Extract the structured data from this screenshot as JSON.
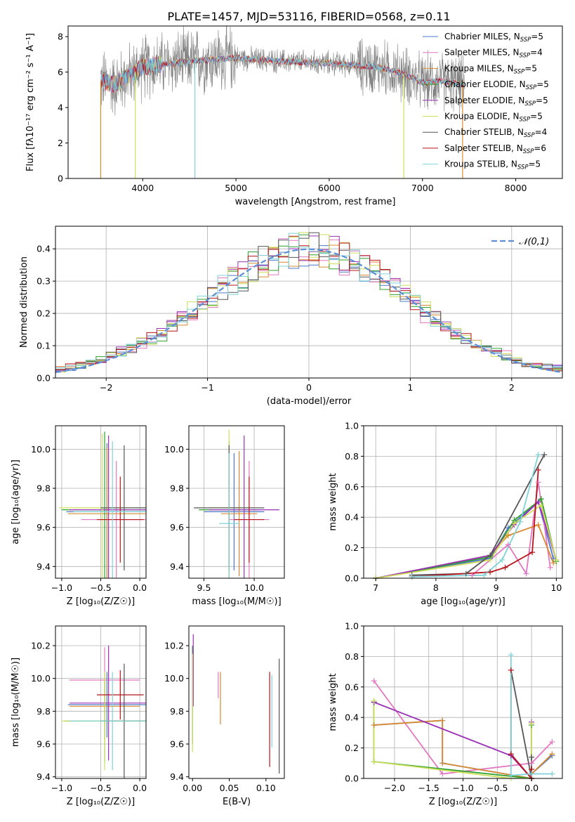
{
  "title": "PLATE=1457, MJD=53116, FIBERID=0568, z=0.11",
  "colors": {
    "Chabrier MILES": "#4e79c8",
    "Salpeter MILES": "#e377c2",
    "Kroupa MILES": "#d98a2f",
    "Chabrier ELODIE": "#2ca02c",
    "Salpeter ELODIE": "#9b30b8",
    "Kroupa ELODIE": "#cddf5a",
    "Chabrier STELIB": "#555555",
    "Salpeter STELIB": "#b8131a",
    "Kroupa STELIB": "#7fd3d8",
    "normal": "#5b8fd6"
  },
  "legend": [
    {
      "text": "Chabrier MILES, N",
      "sub": "SSP",
      "tail": "=5",
      "model": "Chabrier MILES"
    },
    {
      "text": "Salpeter MILES, N",
      "sub": "SSP",
      "tail": "=4",
      "model": "Salpeter MILES"
    },
    {
      "text": "Kroupa MILES, N",
      "sub": "SSP",
      "tail": "=5",
      "model": "Kroupa MILES"
    },
    {
      "text": "Chabrier ELODIE, N",
      "sub": "SSP",
      "tail": "=5",
      "model": "Chabrier ELODIE"
    },
    {
      "text": "Salpeter ELODIE, N",
      "sub": "SSP",
      "tail": "=5",
      "model": "Salpeter ELODIE"
    },
    {
      "text": "Kroupa ELODIE, N",
      "sub": "SSP",
      "tail": "=5",
      "model": "Kroupa ELODIE"
    },
    {
      "text": "Chabrier STELIB, N",
      "sub": "SSP",
      "tail": "=4",
      "model": "Chabrier STELIB"
    },
    {
      "text": "Salpeter STELIB, N",
      "sub": "SSP",
      "tail": "=6",
      "model": "Salpeter STELIB"
    },
    {
      "text": "Kroupa STELIB, N",
      "sub": "SSP",
      "tail": "=5",
      "model": "Kroupa STELIB"
    }
  ],
  "chart_data": [
    {
      "id": "spectrum",
      "type": "line",
      "xlabel": "wavelength [Angstrom, rest frame]",
      "ylabel": "Flux [fλ10⁻¹⁷ erg cm⁻² s⁻¹ A⁻¹]",
      "xlim": [
        3200,
        8500
      ],
      "ylim": [
        0,
        8.6
      ],
      "xticks": [
        4000,
        5000,
        6000,
        7000,
        8000
      ],
      "yticks": [
        0,
        2,
        4,
        6,
        8
      ],
      "grid": false,
      "series_profile": {
        "x": [
          3550,
          3700,
          4000,
          4500,
          5000,
          5500,
          6000,
          6500,
          6800,
          7000,
          7200,
          7400
        ],
        "y": [
          5.5,
          5.3,
          6.3,
          6.6,
          6.8,
          6.6,
          6.5,
          6.3,
          5.9,
          5.4,
          5.5,
          5.3
        ]
      },
      "data_range_x": [
        3550,
        7450
      ],
      "model_range_x": [
        3550,
        7450
      ],
      "dips": [
        {
          "x": 4560,
          "y": 0
        },
        {
          "x": 6800,
          "y": 0
        },
        {
          "x": 3920,
          "y": 0
        },
        {
          "x": 3550,
          "y": 0
        },
        {
          "x": 7430,
          "y": 0
        }
      ]
    },
    {
      "id": "residuals",
      "type": "step",
      "xlabel": "(data-model)/error",
      "ylabel": "Normed distribution",
      "xlim": [
        -2.5,
        2.5
      ],
      "ylim": [
        0,
        0.47
      ],
      "xticks": [
        -2,
        -1,
        0,
        1,
        2
      ],
      "yticks": [
        0.0,
        0.1,
        0.2,
        0.3,
        0.4
      ],
      "grid": true,
      "legend": {
        "label": "𝒩(0,1)",
        "placement": "top-right"
      },
      "bin_width": 0.1,
      "bins_from": -2.5
    },
    {
      "id": "age_Z",
      "type": "errorbar",
      "xlabel": "Z [log₁₀(Z/Z☉)]",
      "ylabel": "age  [log₁₀(age/yr)]",
      "xlim": [
        -1.08,
        0.08
      ],
      "ylim": [
        9.34,
        10.12
      ],
      "xticks": [
        -1.0,
        -0.5,
        0.0
      ],
      "yticks": [
        9.4,
        9.6,
        9.8,
        10.0
      ],
      "grid": true,
      "points": [
        {
          "model": "Chabrier MILES",
          "x": -0.42,
          "y": 9.68,
          "xerr": 0.52,
          "yerr": 0.35
        },
        {
          "model": "Salpeter MILES",
          "x": -0.3,
          "y": 9.64,
          "xerr": 0.45,
          "yerr": 0.3
        },
        {
          "model": "Kroupa MILES",
          "x": -0.42,
          "y": 9.67,
          "xerr": 0.5,
          "yerr": 0.34
        },
        {
          "model": "Chabrier ELODIE",
          "x": -0.45,
          "y": 9.69,
          "xerr": 0.55,
          "yerr": 0.4
        },
        {
          "model": "Salpeter ELODIE",
          "x": -0.4,
          "y": 9.69,
          "xerr": 0.5,
          "yerr": 0.38
        },
        {
          "model": "Kroupa ELODIE",
          "x": -0.48,
          "y": 9.7,
          "xerr": 0.55,
          "yerr": 0.38
        },
        {
          "model": "Chabrier STELIB",
          "x": -0.2,
          "y": 9.7,
          "xerr": 0.3,
          "yerr": 0.32
        },
        {
          "model": "Salpeter STELIB",
          "x": -0.25,
          "y": 9.64,
          "xerr": 0.3,
          "yerr": 0.22
        },
        {
          "model": "Kroupa STELIB",
          "x": -0.35,
          "y": 9.68,
          "xerr": 0.5,
          "yerr": 0.36
        }
      ]
    },
    {
      "id": "age_mass",
      "type": "errorbar",
      "xlabel": "mass [log₁₀(M/M☉)]",
      "ylabel": "",
      "xlim": [
        9.35,
        10.3
      ],
      "ylim": [
        9.34,
        10.12
      ],
      "xticks": [
        9.5,
        10.0
      ],
      "yticks": [
        9.4,
        9.6,
        9.8,
        10.0
      ],
      "grid": true,
      "points": [
        {
          "model": "Chabrier MILES",
          "x": 9.8,
          "y": 9.68,
          "xerr": 0.3,
          "yerr": 0.3
        },
        {
          "model": "Salpeter MILES",
          "x": 9.95,
          "y": 9.64,
          "xerr": 0.2,
          "yerr": 0.3
        },
        {
          "model": "Kroupa MILES",
          "x": 9.85,
          "y": 9.67,
          "xerr": 0.18,
          "yerr": 0.32
        },
        {
          "model": "Chabrier ELODIE",
          "x": 9.75,
          "y": 9.69,
          "xerr": 0.3,
          "yerr": 0.35
        },
        {
          "model": "Salpeter ELODIE",
          "x": 9.9,
          "y": 9.69,
          "xerr": 0.35,
          "yerr": 0.38
        },
        {
          "model": "Kroupa ELODIE",
          "x": 9.75,
          "y": 9.7,
          "xerr": 0.2,
          "yerr": 0.4
        },
        {
          "model": "Chabrier STELIB",
          "x": 9.75,
          "y": 9.7,
          "xerr": 0.35,
          "yerr": 0.32
        },
        {
          "model": "Salpeter STELIB",
          "x": 9.95,
          "y": 9.64,
          "xerr": 0.15,
          "yerr": 0.22
        },
        {
          "model": "Kroupa STELIB",
          "x": 9.75,
          "y": 9.62,
          "xerr": 0.1,
          "yerr": 0.36
        }
      ]
    },
    {
      "id": "weight_age",
      "type": "line",
      "xlabel": "age  [log₁₀(age/yr)]",
      "ylabel": "mass weight",
      "xlim": [
        6.8,
        10.1
      ],
      "ylim": [
        0,
        1.0
      ],
      "xticks": [
        7,
        8,
        9,
        10
      ],
      "yticks": [
        0.0,
        0.2,
        0.4,
        0.6,
        0.8,
        1.0
      ],
      "grid": true,
      "series": [
        {
          "model": "Chabrier MILES",
          "x": [
            7.0,
            8.9,
            9.2,
            9.7,
            9.95
          ],
          "y": [
            0.0,
            0.13,
            0.33,
            0.5,
            0.13
          ]
        },
        {
          "model": "Salpeter MILES",
          "x": [
            8.6,
            9.2,
            9.5,
            9.7,
            9.9
          ],
          "y": [
            0.02,
            0.22,
            0.03,
            0.63,
            0.07
          ]
        },
        {
          "model": "Kroupa MILES",
          "x": [
            7.0,
            8.9,
            9.2,
            9.7,
            9.95
          ],
          "y": [
            0.0,
            0.15,
            0.28,
            0.35,
            0.1
          ]
        },
        {
          "model": "Chabrier ELODIE",
          "x": [
            7.0,
            8.9,
            9.3,
            9.75,
            10.0
          ],
          "y": [
            0.0,
            0.14,
            0.38,
            0.52,
            0.11
          ]
        },
        {
          "model": "Salpeter ELODIE",
          "x": [
            7.0,
            8.9,
            9.3,
            9.7,
            10.0
          ],
          "y": [
            0.0,
            0.15,
            0.35,
            0.5,
            0.12
          ]
        },
        {
          "model": "Kroupa ELODIE",
          "x": [
            7.0,
            8.9,
            9.3,
            9.75,
            10.0
          ],
          "y": [
            0.0,
            0.12,
            0.36,
            0.48,
            0.12
          ]
        },
        {
          "model": "Chabrier STELIB",
          "x": [
            7.6,
            8.5,
            8.9,
            9.8
          ],
          "y": [
            0.02,
            0.03,
            0.15,
            0.81
          ]
        },
        {
          "model": "Salpeter STELIB",
          "x": [
            7.6,
            8.9,
            9.15,
            9.6,
            9.7
          ],
          "y": [
            0.01,
            0.04,
            0.07,
            0.17,
            0.71
          ]
        },
        {
          "model": "Kroupa STELIB",
          "x": [
            7.6,
            8.8,
            9.1,
            9.4,
            9.7
          ],
          "y": [
            0.01,
            0.02,
            0.12,
            0.37,
            0.81
          ]
        }
      ]
    },
    {
      "id": "mass_Z",
      "type": "errorbar",
      "xlabel": "Z [log₁₀(Z/Z☉)]",
      "ylabel": "mass [log₁₀(M/M☉)]",
      "xlim": [
        -1.08,
        0.08
      ],
      "ylim": [
        9.39,
        10.32
      ],
      "xticks": [
        -1.0,
        -0.5,
        0.0
      ],
      "yticks": [
        9.4,
        9.6,
        9.8,
        10.0,
        10.2
      ],
      "grid": true,
      "points": [
        {
          "model": "Chabrier MILES",
          "x": -0.42,
          "y": 9.84,
          "xerr": 0.5,
          "yerr": 0.2
        },
        {
          "model": "Salpeter MILES",
          "x": -0.45,
          "y": 9.99,
          "xerr": 0.45,
          "yerr": 0.2
        },
        {
          "model": "Kroupa MILES",
          "x": -0.45,
          "y": 9.83,
          "xerr": 0.45,
          "yerr": 0.2
        },
        {
          "model": "Chabrier ELODIE",
          "x": -0.45,
          "y": 9.74,
          "xerr": 0.52,
          "yerr": 0.25
        },
        {
          "model": "Salpeter ELODIE",
          "x": -0.4,
          "y": 9.85,
          "xerr": 0.5,
          "yerr": 0.35
        },
        {
          "model": "Kroupa ELODIE",
          "x": -0.45,
          "y": 9.74,
          "xerr": 0.55,
          "yerr": 0.3
        },
        {
          "model": "Chabrier STELIB",
          "x": -0.2,
          "y": 9.74,
          "xerr": 0.3,
          "yerr": 0.35
        },
        {
          "model": "Salpeter STELIB",
          "x": -0.25,
          "y": 9.9,
          "xerr": 0.3,
          "yerr": 0.15
        },
        {
          "model": "Kroupa STELIB",
          "x": -0.35,
          "y": 9.74,
          "xerr": 0.55,
          "yerr": 0.3
        }
      ]
    },
    {
      "id": "mass_ebv",
      "type": "errorbar",
      "xlabel": "E(B-V)",
      "ylabel": "",
      "xlim": [
        -0.005,
        0.125
      ],
      "ylim": [
        9.39,
        10.32
      ],
      "xticks": [
        0.0,
        0.05,
        0.1
      ],
      "yticks": [
        9.4,
        9.6,
        9.8,
        10.0,
        10.2
      ],
      "grid": false,
      "points": [
        {
          "model": "Chabrier MILES",
          "x": 0.0,
          "y": 10.0,
          "xerr": 0,
          "yerr": 0.2
        },
        {
          "model": "Salpeter MILES",
          "x": 0.035,
          "y": 9.96,
          "xerr": 0,
          "yerr": 0.08
        },
        {
          "model": "Kroupa MILES",
          "x": 0.038,
          "y": 9.88,
          "xerr": 0,
          "yerr": 0.16
        },
        {
          "model": "Chabrier ELODIE",
          "x": 0.0,
          "y": 9.9,
          "xerr": 0,
          "yerr": 0.3
        },
        {
          "model": "Salpeter ELODIE",
          "x": 0.001,
          "y": 10.05,
          "xerr": 0,
          "yerr": 0.22
        },
        {
          "model": "Kroupa ELODIE",
          "x": 0.0,
          "y": 9.85,
          "xerr": 0,
          "yerr": 0.3
        },
        {
          "model": "Chabrier STELIB",
          "x": 0.118,
          "y": 9.77,
          "xerr": 0,
          "yerr": 0.35
        },
        {
          "model": "Salpeter STELIB",
          "x": 0.105,
          "y": 9.75,
          "xerr": 0,
          "yerr": 0.29
        },
        {
          "model": "Kroupa STELIB",
          "x": 0.108,
          "y": 9.8,
          "xerr": 0,
          "yerr": 0.22
        }
      ]
    },
    {
      "id": "weight_Z",
      "type": "line",
      "xlabel": "Z [log₁₀(Z/Z☉)]",
      "ylabel": "mass weight",
      "xlim": [
        -2.45,
        0.45
      ],
      "ylim": [
        0,
        1.0
      ],
      "xticks": [
        -2.0,
        -1.5,
        -1.0,
        -0.5,
        0.0
      ],
      "yticks": [
        0.0,
        0.2,
        0.4,
        0.6,
        0.8,
        1.0
      ],
      "grid": true,
      "series": [
        {
          "model": "Chabrier MILES",
          "x": [
            -2.3,
            -2.3,
            -1.3,
            -1.3,
            0.0,
            0.0,
            0.3
          ],
          "y": [
            0.5,
            0.35,
            0.38,
            0.1,
            0.0,
            0.03,
            0.15
          ]
        },
        {
          "model": "Salpeter MILES",
          "x": [
            -2.3,
            -1.3,
            0.0,
            0.3
          ],
          "y": [
            0.64,
            0.03,
            0.1,
            0.24
          ]
        },
        {
          "model": "Kroupa MILES",
          "x": [
            -2.3,
            -2.3,
            -1.3,
            -1.3,
            0.0,
            0.0,
            0.3
          ],
          "y": [
            0.5,
            0.35,
            0.38,
            0.1,
            0.0,
            0.03,
            0.16
          ]
        },
        {
          "model": "Chabrier ELODIE",
          "x": [
            -2.3,
            -2.3,
            0.0,
            0.0
          ],
          "y": [
            0.5,
            0.11,
            0.0,
            0.35
          ]
        },
        {
          "model": "Salpeter ELODIE",
          "x": [
            -2.3,
            -0.3,
            0.0,
            0.0
          ],
          "y": [
            0.5,
            0.15,
            0.0,
            0.37
          ]
        },
        {
          "model": "Kroupa ELODIE",
          "x": [
            -2.3,
            -2.3,
            -0.3,
            0.0,
            0.0
          ],
          "y": [
            0.51,
            0.11,
            0.0,
            0.0,
            0.36
          ]
        },
        {
          "model": "Chabrier STELIB",
          "x": [
            -0.3,
            0.0,
            0.0
          ],
          "y": [
            0.71,
            0.0,
            0.14
          ]
        },
        {
          "model": "Salpeter STELIB",
          "x": [
            -0.3,
            -0.3,
            0.0,
            0.0
          ],
          "y": [
            0.71,
            0.16,
            0.0,
            0.06
          ]
        },
        {
          "model": "Kroupa STELIB",
          "x": [
            -0.3,
            -0.3,
            0.0,
            0.3
          ],
          "y": [
            0.81,
            0.02,
            0.03,
            0.03
          ]
        }
      ]
    }
  ]
}
